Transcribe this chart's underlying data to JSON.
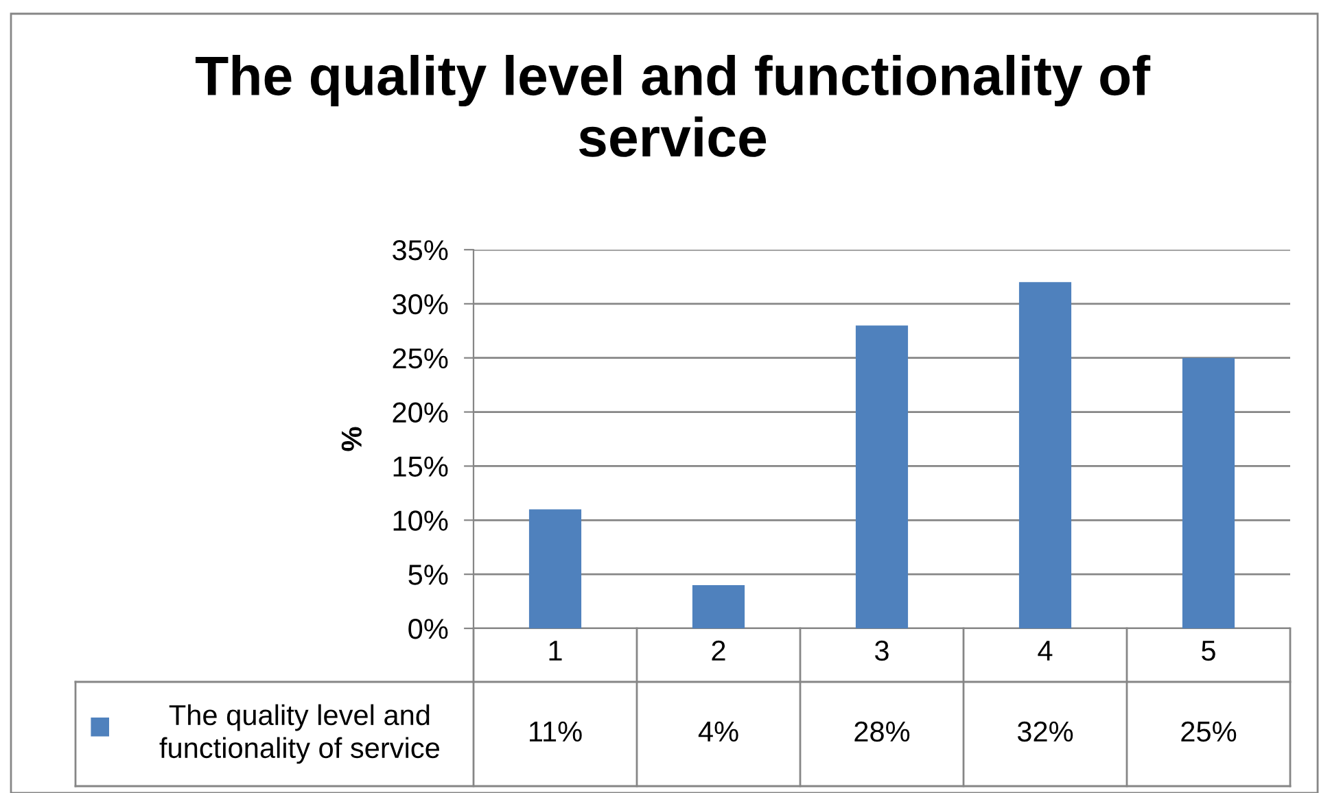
{
  "chart_data": {
    "type": "bar",
    "title": "The quality level and functionality of service",
    "ylabel": "%",
    "categories": [
      "1",
      "2",
      "3",
      "4",
      "5"
    ],
    "series": [
      {
        "name": "The quality level and functionality of service",
        "color": "#4f81bd",
        "values": [
          11,
          4,
          28,
          32,
          25
        ],
        "value_labels": [
          "11%",
          "4%",
          "28%",
          "32%",
          "25%"
        ]
      }
    ],
    "ylim": [
      0,
      35
    ],
    "yticks": [
      {
        "value": 0,
        "label": "0%"
      },
      {
        "value": 5,
        "label": "5%"
      },
      {
        "value": 10,
        "label": "10%"
      },
      {
        "value": 15,
        "label": "15%"
      },
      {
        "value": 20,
        "label": "20%"
      },
      {
        "value": 25,
        "label": "25%"
      },
      {
        "value": 30,
        "label": "30%"
      },
      {
        "value": 35,
        "label": "35%"
      }
    ],
    "grid": "y",
    "legend": "bottom"
  }
}
